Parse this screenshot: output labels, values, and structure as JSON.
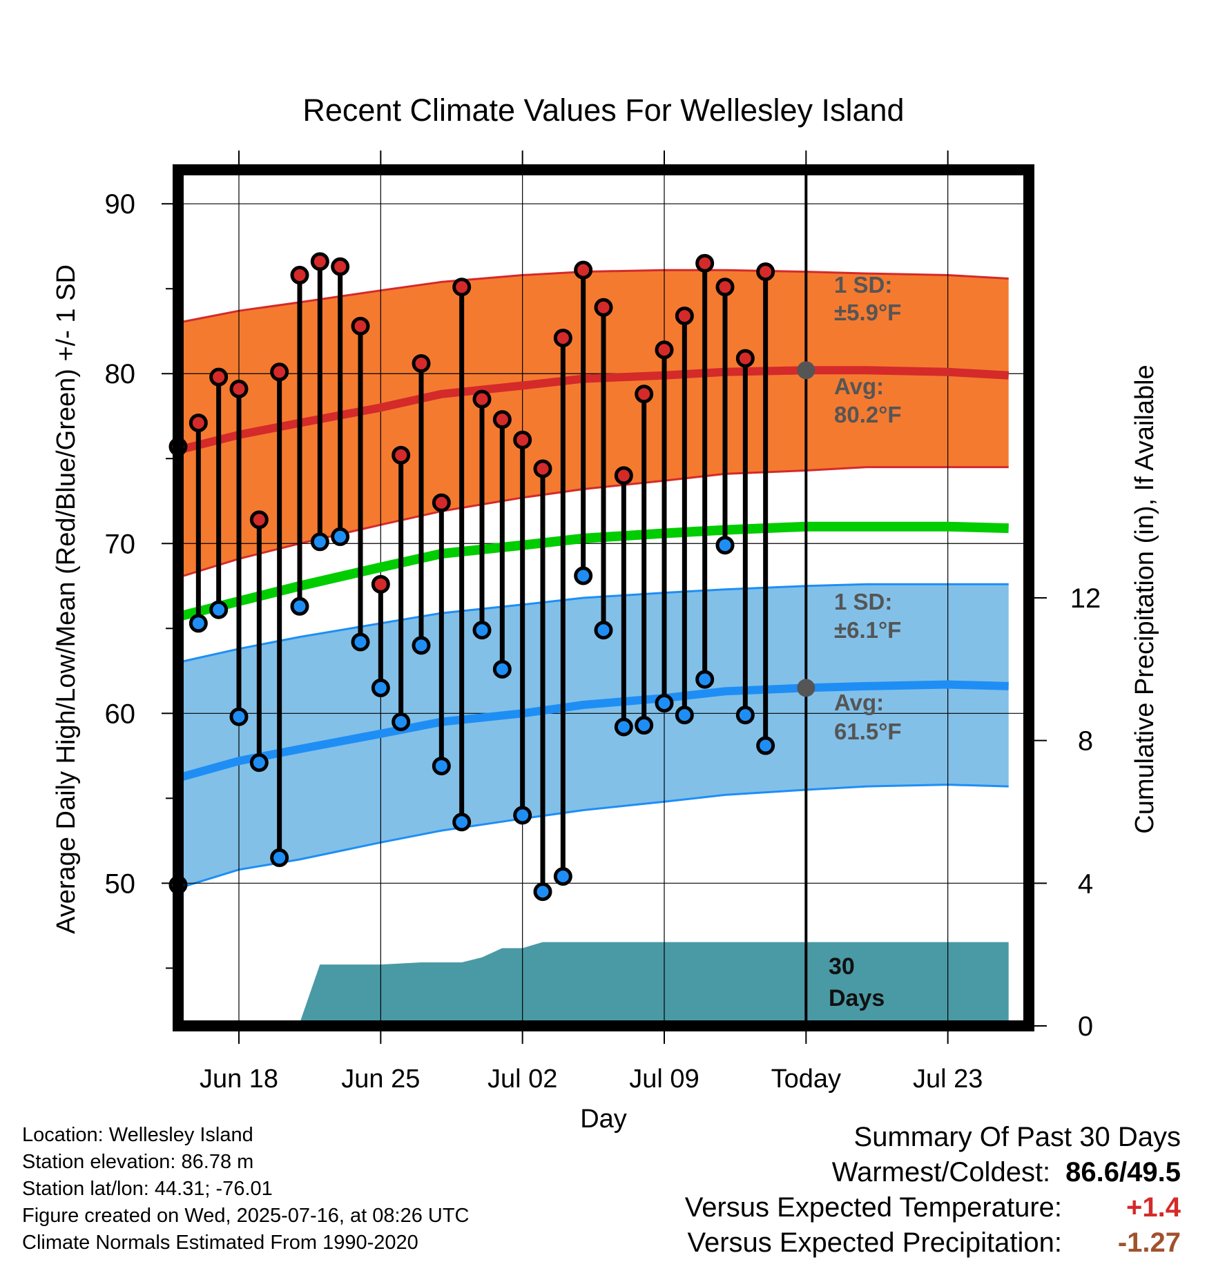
{
  "chart_data": {
    "type": "line",
    "title": "Recent Climate Values For Wellesley Island",
    "xlabel": "Day",
    "ylabel_left": "Average Daily High/Low/Mean (Red/Blue/Green) +/- 1 SD",
    "ylabel_right": "Cumulative Precipitation (in), If Available",
    "x_domain": [
      "2025-06-15",
      "2025-07-27"
    ],
    "x_ticks": [
      {
        "date": "2025-06-18",
        "label": "Jun 18"
      },
      {
        "date": "2025-06-25",
        "label": "Jun 25"
      },
      {
        "date": "2025-07-02",
        "label": "Jul 02"
      },
      {
        "date": "2025-07-09",
        "label": "Jul 09"
      },
      {
        "date": "2025-07-16",
        "label": "Today"
      },
      {
        "date": "2025-07-23",
        "label": "Jul 23"
      }
    ],
    "ylim_left": [
      41.6,
      92
    ],
    "y_ticks_left": [
      50,
      60,
      70,
      80,
      90
    ],
    "ylim_right": [
      0,
      24
    ],
    "y_ticks_right": [
      0,
      4,
      8,
      12
    ],
    "grid": true,
    "today": "2025-07-16",
    "normals": {
      "dates": [
        "2025-06-15",
        "2025-06-18",
        "2025-06-21",
        "2025-06-25",
        "2025-06-28",
        "2025-07-02",
        "2025-07-05",
        "2025-07-09",
        "2025-07-12",
        "2025-07-16",
        "2025-07-19",
        "2025-07-23",
        "2025-07-26"
      ],
      "high_avg": [
        75.5,
        76.4,
        77.1,
        78.0,
        78.8,
        79.3,
        79.7,
        79.9,
        80.1,
        80.2,
        80.2,
        80.1,
        79.9
      ],
      "high_upper": [
        83.0,
        83.7,
        84.2,
        84.9,
        85.4,
        85.8,
        86.0,
        86.1,
        86.1,
        86.0,
        85.9,
        85.8,
        85.6
      ],
      "high_lower": [
        68.0,
        69.1,
        70.0,
        71.1,
        71.9,
        72.7,
        73.2,
        73.7,
        74.1,
        74.3,
        74.5,
        74.5,
        74.5
      ],
      "mean_avg": [
        65.7,
        66.6,
        67.5,
        68.6,
        69.4,
        69.9,
        70.3,
        70.6,
        70.8,
        71.0,
        71.0,
        71.0,
        70.9
      ],
      "low_avg": [
        56.2,
        57.2,
        57.9,
        58.8,
        59.5,
        60.0,
        60.5,
        60.9,
        61.3,
        61.5,
        61.6,
        61.7,
        61.6
      ],
      "low_upper": [
        63.0,
        63.8,
        64.5,
        65.3,
        65.9,
        66.4,
        66.8,
        67.1,
        67.3,
        67.5,
        67.6,
        67.6,
        67.6
      ],
      "low_lower": [
        49.7,
        50.8,
        51.4,
        52.4,
        53.1,
        53.8,
        54.3,
        54.8,
        55.2,
        55.5,
        55.7,
        55.8,
        55.7
      ]
    },
    "highs": {
      "name": "High",
      "dates": [
        "2025-06-15",
        "2025-06-16",
        "2025-06-17",
        "2025-06-18",
        "2025-06-19",
        "2025-06-20",
        "2025-06-21",
        "2025-06-22",
        "2025-06-23",
        "2025-06-24",
        "2025-06-25",
        "2025-06-26",
        "2025-06-27",
        "2025-06-28",
        "2025-06-29",
        "2025-06-30",
        "2025-07-01",
        "2025-07-02",
        "2025-07-03",
        "2025-07-04",
        "2025-07-05",
        "2025-07-06",
        "2025-07-07",
        "2025-07-08",
        "2025-07-09",
        "2025-07-10",
        "2025-07-11",
        "2025-07-12",
        "2025-07-13",
        "2025-07-14",
        "2025-07-15"
      ],
      "values": [
        75.7,
        77.1,
        79.8,
        79.1,
        71.4,
        80.1,
        85.8,
        86.6,
        86.3,
        82.8,
        67.6,
        75.2,
        80.6,
        72.4,
        85.1,
        78.5,
        77.3,
        76.1,
        74.4,
        82.1,
        86.1,
        83.9,
        74.0,
        78.8,
        81.4,
        83.4,
        86.5,
        85.1,
        80.9,
        86.0,
        null
      ]
    },
    "lows": {
      "name": "Low",
      "dates": [
        "2025-06-15",
        "2025-06-16",
        "2025-06-17",
        "2025-06-18",
        "2025-06-19",
        "2025-06-20",
        "2025-06-21",
        "2025-06-22",
        "2025-06-23",
        "2025-06-24",
        "2025-06-25",
        "2025-06-26",
        "2025-06-27",
        "2025-06-28",
        "2025-06-29",
        "2025-06-30",
        "2025-07-01",
        "2025-07-02",
        "2025-07-03",
        "2025-07-04",
        "2025-07-05",
        "2025-07-06",
        "2025-07-07",
        "2025-07-08",
        "2025-07-09",
        "2025-07-10",
        "2025-07-11",
        "2025-07-12",
        "2025-07-13",
        "2025-07-14",
        "2025-07-15"
      ],
      "values": [
        49.9,
        65.3,
        66.1,
        59.8,
        57.1,
        51.5,
        66.3,
        70.1,
        70.4,
        64.2,
        61.5,
        59.5,
        64.0,
        56.9,
        53.6,
        64.9,
        62.6,
        54.0,
        49.5,
        50.4,
        68.1,
        64.9,
        59.2,
        59.3,
        60.6,
        59.9,
        62.0,
        69.9,
        59.9,
        58.1,
        null
      ]
    },
    "precip_cumulative": {
      "name": "Cumulative Precipitation",
      "dates": [
        "2025-06-15",
        "2025-06-19",
        "2025-06-20",
        "2025-06-21",
        "2025-06-22",
        "2025-06-25",
        "2025-06-27",
        "2025-06-29",
        "2025-06-30",
        "2025-07-01",
        "2025-07-02",
        "2025-07-03",
        "2025-07-16",
        "2025-07-26"
      ],
      "values": [
        0.0,
        0.0,
        0.03,
        0.08,
        1.72,
        1.72,
        1.78,
        1.78,
        1.92,
        2.18,
        2.18,
        2.35,
        2.35,
        2.35
      ]
    },
    "annotations": {
      "high_sd": "±5.9°F",
      "high_avg": "80.2°F",
      "low_sd": "±6.1°F",
      "low_avg": "61.5°F",
      "window_days": "30"
    },
    "colors": {
      "high_band": "#f47a30",
      "high_line": "#d42a2a",
      "low_band": "#82c0e8",
      "low_line": "#1e8ef5",
      "mean_line": "#00cc00",
      "precip": "#4a9aa5",
      "high_marker": "#d42a2a",
      "low_marker": "#1e8ef5",
      "note_text": "#555555"
    }
  },
  "labels": {
    "sd_prefix": "1 SD:",
    "avg_prefix": "Avg:",
    "days_word": "Days"
  },
  "info": {
    "location": "Location: Wellesley Island",
    "elevation": "Station elevation: 86.78 m",
    "latlon": "Station lat/lon: 44.31; -76.01",
    "created": "Figure created on Wed, 2025-07-16, at 08:26 UTC",
    "normals": "Climate Normals Estimated From 1990-2020"
  },
  "summary": {
    "title": "Summary Of Past 30 Days",
    "warmest_label": "Warmest/Coldest:",
    "warmest_value": "86.6/49.5",
    "temp_label": "Versus Expected Temperature:",
    "temp_value": "+1.4",
    "temp_color": "#d42a2a",
    "precip_label": "Versus Expected Precipitation:",
    "precip_value": "-1.27",
    "precip_color": "#a0522d"
  }
}
